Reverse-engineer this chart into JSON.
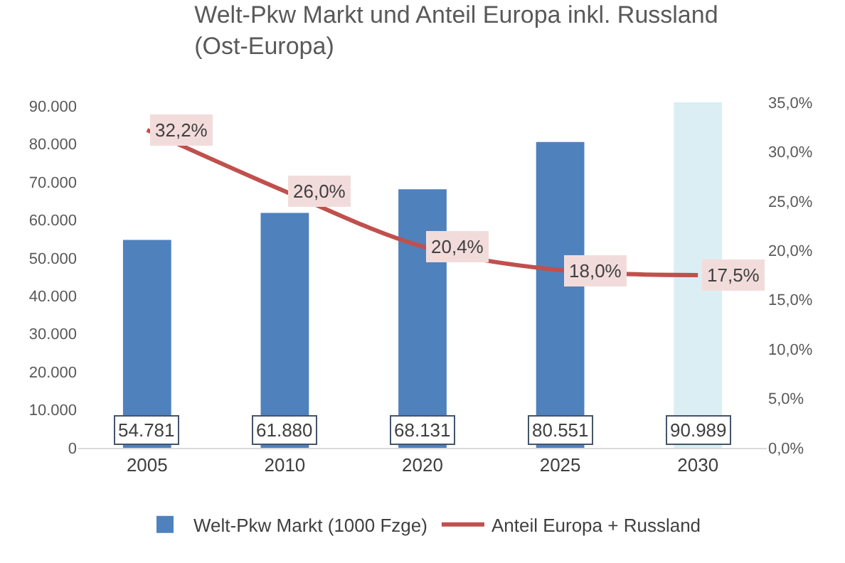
{
  "chart_data": {
    "type": "bar",
    "title": "Welt-Pkw Markt und Anteil Europa inkl. Russland (Ost-Europa)",
    "categories": [
      "2005",
      "2010",
      "2020",
      "2025",
      "2030"
    ],
    "series": [
      {
        "name": "Welt-Pkw Markt (1000 Fzge)",
        "color": "#4f81bd",
        "colors": [
          null,
          null,
          null,
          null,
          "#daeef3"
        ],
        "values": [
          54781,
          61880,
          68131,
          80551,
          90989
        ],
        "value_labels": [
          "54.781",
          "61.880",
          "68.131",
          "80.551",
          "90.989"
        ]
      },
      {
        "type": "line",
        "name": "Anteil Europa + Russland",
        "color": "#c0504d",
        "axis": "y2",
        "values": [
          32.2,
          26.0,
          20.4,
          18.0,
          17.5
        ],
        "value_labels": [
          "32,2%",
          "26,0%",
          "20,4%",
          "18,0%",
          "17,5%"
        ]
      }
    ],
    "ylim": [
      0,
      91000
    ],
    "yticks": [
      {
        "value": 0,
        "label": "0"
      },
      {
        "value": 10000,
        "label": "10.000"
      },
      {
        "value": 20000,
        "label": "20.000"
      },
      {
        "value": 30000,
        "label": "30.000"
      },
      {
        "value": 40000,
        "label": "40.000"
      },
      {
        "value": 50000,
        "label": "50.000"
      },
      {
        "value": 60000,
        "label": "60.000"
      },
      {
        "value": 70000,
        "label": "70.000"
      },
      {
        "value": 80000,
        "label": "80.000"
      },
      {
        "value": 90000,
        "label": "90.000"
      }
    ],
    "y2lim": [
      0,
      35
    ],
    "y2ticks": [
      {
        "value": 0,
        "label": "0,0%"
      },
      {
        "value": 5,
        "label": "5,0%"
      },
      {
        "value": 10,
        "label": "10,0%"
      },
      {
        "value": 15,
        "label": "15,0%"
      },
      {
        "value": 20,
        "label": "20,0%"
      },
      {
        "value": 25,
        "label": "25,0%"
      },
      {
        "value": 30,
        "label": "30,0%"
      },
      {
        "value": 35,
        "label": "35,0%"
      }
    ],
    "grid": false,
    "legend": "bottom",
    "marker": "none",
    "line_style": "solid"
  }
}
